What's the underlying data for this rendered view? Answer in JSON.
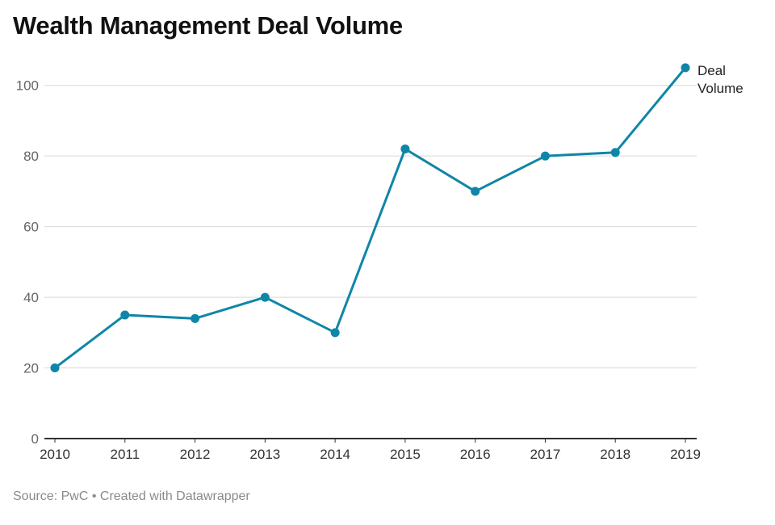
{
  "title": "Wealth Management Deal Volume",
  "footer": {
    "source": "Source: PwC",
    "separator": "•",
    "credit": "Created with Datawrapper"
  },
  "chart_data": {
    "type": "line",
    "title": "Wealth Management Deal Volume",
    "xlabel": "",
    "ylabel": "",
    "categories": [
      "2010",
      "2011",
      "2012",
      "2013",
      "2014",
      "2015",
      "2016",
      "2017",
      "2018",
      "2019"
    ],
    "series": [
      {
        "name": "Deal Volume",
        "label_lines": [
          "Deal",
          "Volume"
        ],
        "values": [
          20,
          35,
          34,
          40,
          30,
          82,
          70,
          80,
          81,
          105
        ]
      }
    ],
    "yticks": [
      0,
      20,
      40,
      60,
      80,
      100
    ],
    "ylim": [
      0,
      110
    ],
    "grid": true,
    "legend": "direct label at end of line",
    "colors": {
      "line": "#0f86a8",
      "grid": "#d9d9d9",
      "axis": "#333333"
    }
  }
}
